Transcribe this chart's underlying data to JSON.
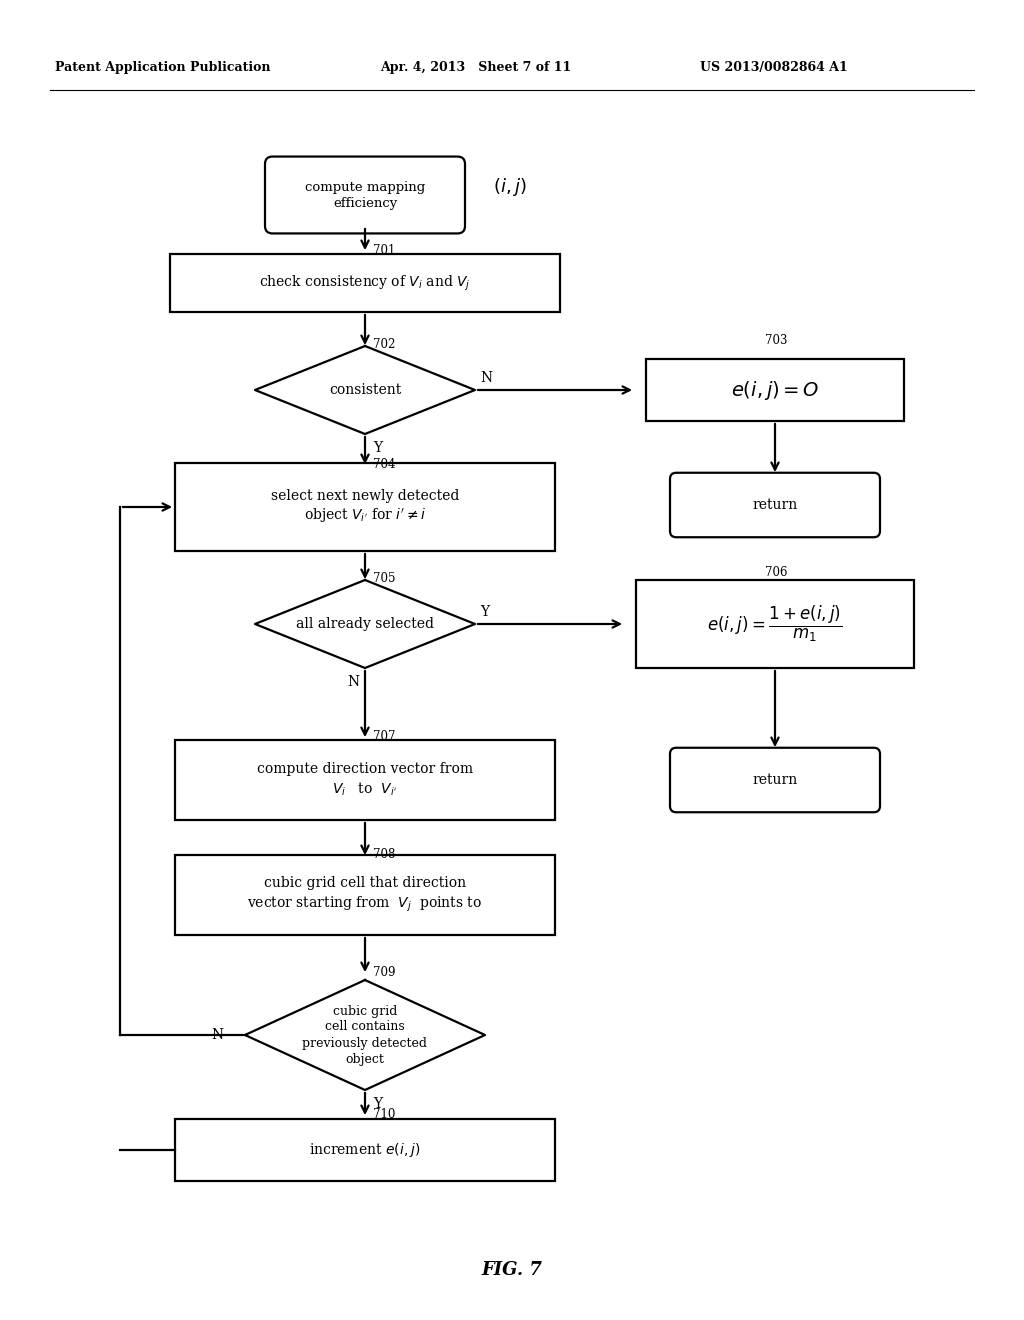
{
  "bg_color": "#ffffff",
  "header_left": "Patent Application Publication",
  "header_mid": "Apr. 4, 2013   Sheet 7 of 11",
  "header_right": "US 2013/0082864 A1",
  "footer": "FIG. 7"
}
